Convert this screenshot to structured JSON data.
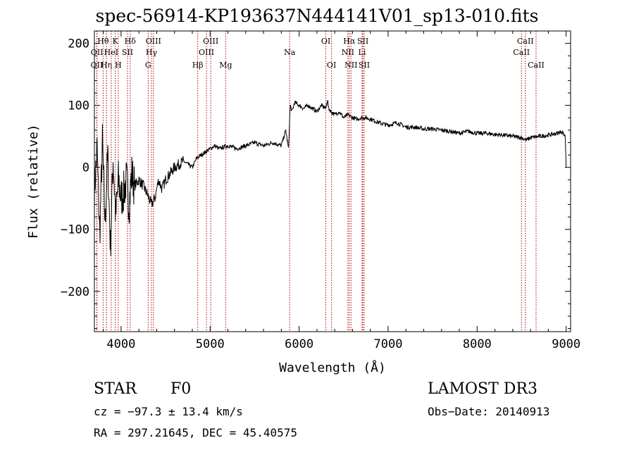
{
  "chart_data": {
    "type": "line",
    "title": "spec-56914-KP193637N444141V01_sp13-010.fits",
    "xlabel": "Wavelength (Å)",
    "ylabel": "Flux (relative)",
    "xlim": [
      3700,
      9050
    ],
    "ylim": [
      -265,
      220
    ],
    "xticks": [
      4000,
      5000,
      6000,
      7000,
      8000,
      9000
    ],
    "xtick_labels": [
      "4000",
      "5000",
      "6000",
      "7000",
      "8000",
      "9000"
    ],
    "yticks": [
      -200,
      -100,
      0,
      100,
      200
    ],
    "ytick_labels": [
      "−200",
      "−100",
      "0",
      "100",
      "200"
    ],
    "series": [
      {
        "name": "flux",
        "x": [
          3700,
          3730,
          3760,
          3790,
          3820,
          3850,
          3880,
          3910,
          3940,
          3970,
          4000,
          4030,
          4060,
          4090,
          4120,
          4150,
          4200,
          4250,
          4300,
          4340,
          4380,
          4420,
          4460,
          4500,
          4550,
          4600,
          4650,
          4700,
          4750,
          4800,
          4850,
          4900,
          4950,
          5000,
          5050,
          5100,
          5200,
          5300,
          5400,
          5500,
          5600,
          5700,
          5800,
          5850,
          5880,
          5900,
          5920,
          5950,
          6000,
          6050,
          6100,
          6150,
          6200,
          6250,
          6300,
          6320,
          6330,
          6360,
          6400,
          6450,
          6500,
          6550,
          6600,
          6650,
          6700,
          6750,
          6800,
          6900,
          7000,
          7100,
          7200,
          7300,
          7400,
          7500,
          7600,
          7700,
          7800,
          7900,
          8000,
          8100,
          8200,
          8300,
          8400,
          8500,
          8550,
          8600,
          8700,
          8800,
          8900,
          8950,
          8990,
          9000
        ],
        "y": [
          -40,
          30,
          -110,
          40,
          -90,
          20,
          -130,
          15,
          -80,
          -20,
          -50,
          -40,
          -20,
          -60,
          -10,
          -30,
          -20,
          -30,
          -45,
          -60,
          -50,
          -20,
          -35,
          -20,
          -10,
          0,
          5,
          10,
          5,
          0,
          15,
          20,
          25,
          30,
          35,
          30,
          35,
          30,
          35,
          40,
          35,
          40,
          35,
          60,
          30,
          100,
          90,
          105,
          100,
          95,
          100,
          95,
          90,
          100,
          95,
          110,
          95,
          90,
          85,
          90,
          80,
          85,
          80,
          78,
          80,
          80,
          78,
          72,
          68,
          72,
          65,
          65,
          62,
          62,
          60,
          58,
          55,
          58,
          55,
          55,
          53,
          52,
          50,
          48,
          44,
          48,
          50,
          52,
          55,
          58,
          50,
          0
        ]
      }
    ],
    "lines": [
      {
        "name": "OII",
        "x": 3727,
        "row": 2
      },
      {
        "name": "OII",
        "x": 3729,
        "row": 1
      },
      {
        "name": "Hθ",
        "x": 3798,
        "row": 0
      },
      {
        "name": "Hη",
        "x": 3835,
        "row": 2
      },
      {
        "name": "HeI",
        "x": 3889,
        "row": 1
      },
      {
        "name": "K",
        "x": 3934,
        "row": 0
      },
      {
        "name": "H",
        "x": 3968,
        "row": 2
      },
      {
        "name": "SII",
        "x": 4072,
        "row": 1
      },
      {
        "name": "Hδ",
        "x": 4102,
        "row": 0
      },
      {
        "name": "G",
        "x": 4304,
        "row": 2
      },
      {
        "name": "Hγ",
        "x": 4341,
        "row": 1
      },
      {
        "name": "OIII",
        "x": 4363,
        "row": 0
      },
      {
        "name": "Hβ",
        "x": 4861,
        "row": 2
      },
      {
        "name": "OIII",
        "x": 4959,
        "row": 1
      },
      {
        "name": "OIII",
        "x": 5007,
        "row": 0
      },
      {
        "name": "Mg",
        "x": 5175,
        "row": 2
      },
      {
        "name": "Na",
        "x": 5894,
        "row": 1
      },
      {
        "name": "OI",
        "x": 6300,
        "row": 0
      },
      {
        "name": "OI",
        "x": 6364,
        "row": 2
      },
      {
        "name": "NII",
        "x": 6548,
        "row": 1
      },
      {
        "name": "Hα",
        "x": 6563,
        "row": 0
      },
      {
        "name": "NII",
        "x": 6583,
        "row": 2
      },
      {
        "name": "Li",
        "x": 6707,
        "row": 1
      },
      {
        "name": "SII",
        "x": 6716,
        "row": 0
      },
      {
        "name": "SII",
        "x": 6731,
        "row": 2
      },
      {
        "name": "CaII",
        "x": 8498,
        "row": 1
      },
      {
        "name": "CaII",
        "x": 8542,
        "row": 0
      },
      {
        "name": "CaII",
        "x": 8662,
        "row": 2
      }
    ]
  },
  "info": {
    "class": "STAR",
    "subclass": "F0",
    "survey": "LAMOST DR3",
    "cz": "cz = −97.3 ± 13.4 km/s",
    "obs_date": "Obs−Date: 20140913",
    "coords": "RA = 297.21645, DEC =  45.40575"
  }
}
